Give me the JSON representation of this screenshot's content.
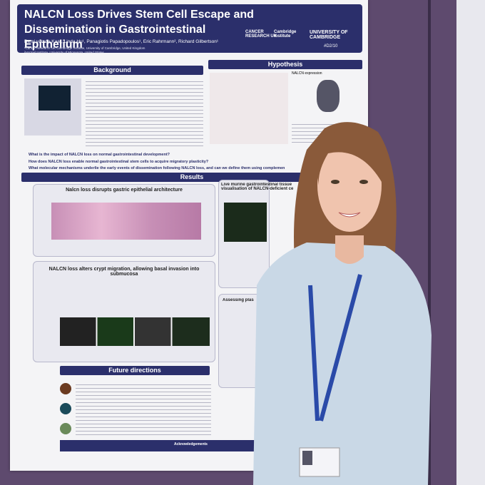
{
  "poster": {
    "title": "NALCN Loss Drives Stem Cell Escape and Dissemination in Gastrointestinal Epithelium",
    "authors": "Demi van de Kaa¹, Linda Hu¹, Panagiotis Papadopoulos¹, Eric Rahrmann², Richard Gilbertson¹",
    "affiliations": [
      "¹Cancer Research UK Cambridge Institute, University of Cambridge, United Kingdom",
      "²Hormel Institute, University of Minnesota, United States"
    ],
    "logos": [
      "CANCER RESEARCH UK",
      "Cambridge Institute",
      "UNIVERSITY OF CAMBRIDGE"
    ],
    "code": "#D2/10",
    "sections": {
      "background": "Background",
      "hypothesis": "Hypothesis",
      "results": "Results",
      "future": "Future directions"
    },
    "questions": [
      "What is the impact of NALCN loss on normal gastrointestinal development?",
      "How does NALCN loss enable normal gastrointestinal stem cells to acquire migratory plasticity?",
      "What molecular mechanisms underlie the early events of dissemination following NALCN loss, and can we define them using complemen"
    ],
    "panels": [
      "Nalcn loss disrupts gastric epithelial architecture",
      "NALCN loss alters crypt migration, allowing basal invasion into submucosa",
      "Live murine gastrointestinal tissue visualisation of NALCN-deficient ce",
      "Assessing plas"
    ],
    "hypothesis_label": "NALCN expression",
    "acknowledgements": "Acknowledgements"
  }
}
